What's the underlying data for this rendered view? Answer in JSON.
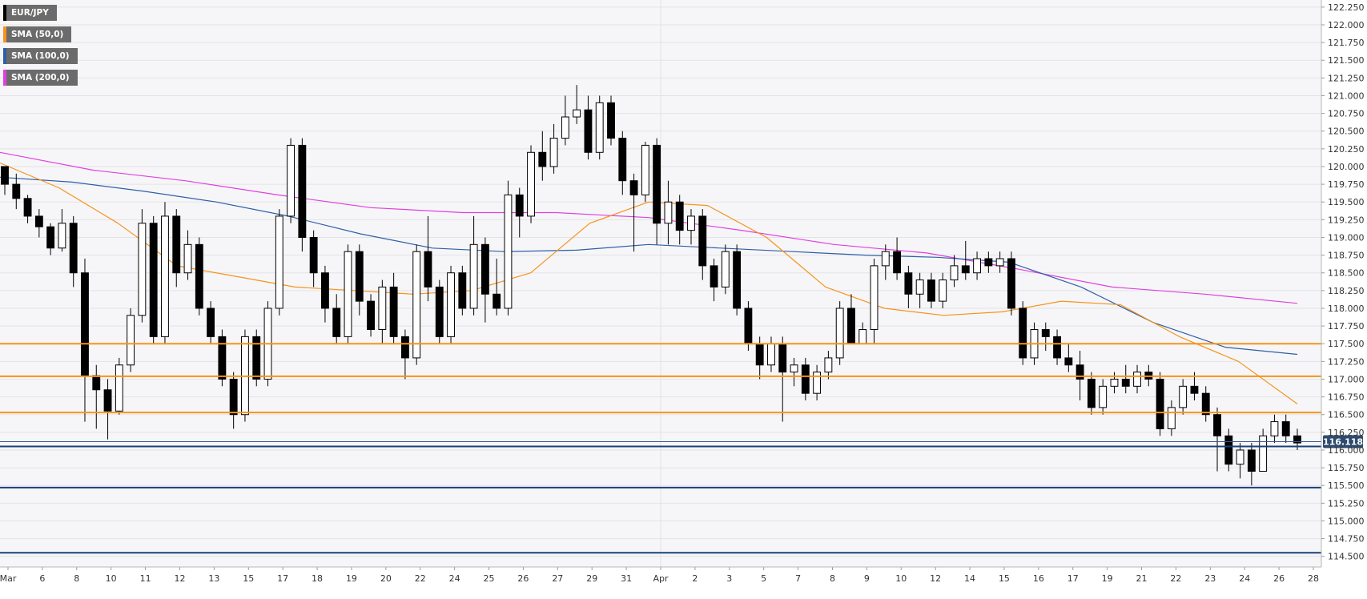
{
  "chart_data": {
    "type": "candlestick",
    "instrument": "EUR/JPY",
    "legend": [
      {
        "label": "EUR/JPY",
        "color": "#000000"
      },
      {
        "label": "SMA (50,0)",
        "color": "#f7931a"
      },
      {
        "label": "SMA (100,0)",
        "color": "#2f5fa7"
      },
      {
        "label": "SMA (200,0)",
        "color": "#e040e0"
      }
    ],
    "ylim": [
      114.35,
      122.35
    ],
    "y_ticks": [
      "122.250",
      "122.000",
      "121.750",
      "121.500",
      "121.250",
      "121.000",
      "120.750",
      "120.500",
      "120.250",
      "120.000",
      "119.750",
      "119.500",
      "119.250",
      "119.000",
      "118.750",
      "118.500",
      "118.250",
      "118.000",
      "117.750",
      "117.500",
      "117.250",
      "117.000",
      "116.750",
      "116.500",
      "116.250",
      "116.000",
      "115.750",
      "115.500",
      "115.250",
      "115.000",
      "114.750",
      "114.500"
    ],
    "x_ticks": [
      "Mar",
      "6",
      "8",
      "10",
      "11",
      "12",
      "13",
      "15",
      "17",
      "18",
      "19",
      "20",
      "22",
      "24",
      "25",
      "26",
      "27",
      "29",
      "31",
      "Apr",
      "2",
      "3",
      "5",
      "7",
      "8",
      "9",
      "10",
      "12",
      "14",
      "15",
      "16",
      "17",
      "19",
      "21",
      "22",
      "23",
      "24",
      "26",
      "28"
    ],
    "last_price": "116.118",
    "resistance_levels": [
      117.5,
      117.04,
      116.53
    ],
    "support_levels": [
      116.05,
      115.47,
      114.55
    ],
    "sma_50": [
      120.05,
      119.7,
      119.2,
      118.6,
      118.45,
      118.3,
      118.25,
      118.2,
      118.25,
      118.5,
      119.2,
      119.5,
      119.45,
      119.0,
      118.3,
      118.0,
      117.9,
      117.95,
      118.1,
      118.05,
      117.6,
      117.25,
      116.65
    ],
    "sma_100": [
      119.85,
      119.78,
      119.65,
      119.5,
      119.3,
      119.05,
      118.85,
      118.8,
      118.82,
      118.9,
      118.85,
      118.8,
      118.75,
      118.72,
      118.65,
      118.3,
      117.8,
      117.45,
      117.35
    ],
    "sma_200": [
      120.2,
      119.95,
      119.8,
      119.6,
      119.42,
      119.35,
      119.35,
      119.28,
      119.1,
      118.9,
      118.78,
      118.55,
      118.3,
      118.2,
      118.07
    ],
    "candles": [
      [
        120.0,
        119.75,
        120.0,
        119.6
      ],
      [
        119.75,
        119.55,
        119.9,
        119.4
      ],
      [
        119.55,
        119.3,
        119.6,
        119.2
      ],
      [
        119.3,
        119.15,
        119.4,
        119.0
      ],
      [
        119.15,
        118.85,
        119.2,
        118.75
      ],
      [
        118.85,
        119.2,
        119.4,
        118.8
      ],
      [
        119.2,
        118.5,
        119.3,
        118.3
      ],
      [
        118.5,
        117.05,
        118.7,
        116.4
      ],
      [
        117.05,
        116.85,
        117.2,
        116.3
      ],
      [
        116.85,
        116.55,
        117.0,
        116.15
      ],
      [
        116.55,
        117.2,
        117.3,
        116.5
      ],
      [
        117.2,
        117.9,
        118.0,
        117.1
      ],
      [
        117.9,
        119.2,
        119.4,
        117.8
      ],
      [
        119.2,
        117.6,
        119.3,
        117.5
      ],
      [
        117.6,
        119.3,
        119.5,
        117.5
      ],
      [
        119.3,
        118.5,
        119.4,
        118.3
      ],
      [
        118.5,
        118.9,
        119.1,
        118.4
      ],
      [
        118.9,
        118.0,
        119.0,
        117.9
      ],
      [
        118.0,
        117.6,
        118.1,
        117.5
      ],
      [
        117.6,
        117.0,
        117.7,
        116.9
      ],
      [
        117.0,
        116.5,
        117.1,
        116.3
      ],
      [
        116.5,
        117.6,
        117.7,
        116.4
      ],
      [
        117.6,
        117.0,
        117.7,
        116.9
      ],
      [
        117.0,
        118.0,
        118.1,
        116.9
      ],
      [
        118.0,
        119.3,
        119.4,
        117.9
      ],
      [
        119.3,
        120.3,
        120.4,
        119.2
      ],
      [
        120.3,
        119.0,
        120.4,
        118.8
      ],
      [
        119.0,
        118.5,
        119.1,
        118.3
      ],
      [
        118.5,
        118.0,
        118.6,
        117.8
      ],
      [
        118.0,
        117.6,
        118.2,
        117.5
      ],
      [
        117.6,
        118.8,
        118.9,
        117.5
      ],
      [
        118.8,
        118.1,
        118.9,
        117.9
      ],
      [
        118.1,
        117.7,
        118.2,
        117.6
      ],
      [
        117.7,
        118.3,
        118.4,
        117.5
      ],
      [
        118.3,
        117.6,
        118.5,
        117.5
      ],
      [
        117.6,
        117.3,
        117.7,
        117.0
      ],
      [
        117.3,
        118.8,
        118.9,
        117.2
      ],
      [
        118.8,
        118.3,
        119.3,
        118.1
      ],
      [
        118.3,
        117.6,
        118.4,
        117.5
      ],
      [
        117.6,
        118.5,
        118.6,
        117.5
      ],
      [
        118.5,
        118.0,
        118.6,
        117.9
      ],
      [
        118.0,
        118.9,
        119.3,
        117.9
      ],
      [
        118.9,
        118.2,
        119.0,
        117.8
      ],
      [
        118.2,
        118.0,
        118.7,
        117.9
      ],
      [
        118.0,
        119.6,
        119.8,
        117.9
      ],
      [
        119.6,
        119.3,
        119.7,
        119.0
      ],
      [
        119.3,
        120.2,
        120.3,
        119.2
      ],
      [
        120.2,
        120.0,
        120.5,
        119.8
      ],
      [
        120.0,
        120.4,
        120.6,
        119.9
      ],
      [
        120.4,
        120.7,
        121.0,
        120.3
      ],
      [
        120.7,
        120.8,
        121.15,
        120.6
      ],
      [
        120.8,
        120.2,
        121.0,
        120.1
      ],
      [
        120.2,
        120.9,
        121.0,
        120.1
      ],
      [
        120.9,
        120.4,
        121.0,
        120.3
      ],
      [
        120.4,
        119.8,
        120.5,
        119.6
      ],
      [
        119.8,
        119.6,
        119.9,
        118.8
      ],
      [
        119.6,
        120.3,
        120.35,
        119.5
      ],
      [
        120.3,
        119.2,
        120.4,
        118.9
      ],
      [
        119.2,
        119.5,
        119.8,
        118.9
      ],
      [
        119.5,
        119.1,
        119.6,
        118.9
      ],
      [
        119.1,
        119.3,
        119.4,
        118.9
      ],
      [
        119.3,
        118.6,
        119.4,
        118.4
      ],
      [
        118.6,
        118.3,
        118.7,
        118.1
      ],
      [
        118.3,
        118.8,
        118.9,
        118.2
      ],
      [
        118.8,
        118.0,
        118.9,
        117.9
      ],
      [
        118.0,
        117.5,
        118.1,
        117.4
      ],
      [
        117.5,
        117.2,
        117.6,
        117.0
      ],
      [
        117.2,
        117.5,
        117.6,
        117.1
      ],
      [
        117.5,
        117.1,
        117.6,
        116.4
      ],
      [
        117.1,
        117.2,
        117.3,
        116.9
      ],
      [
        117.2,
        116.8,
        117.3,
        116.7
      ],
      [
        116.8,
        117.1,
        117.2,
        116.7
      ],
      [
        117.1,
        117.3,
        117.4,
        117.0
      ],
      [
        117.3,
        118.0,
        118.1,
        117.2
      ],
      [
        118.0,
        117.5,
        118.2,
        117.5
      ],
      [
        117.5,
        117.7,
        117.8,
        117.5
      ],
      [
        117.7,
        118.6,
        118.7,
        117.5
      ],
      [
        118.6,
        118.8,
        118.9,
        118.4
      ],
      [
        118.8,
        118.5,
        119.0,
        118.4
      ],
      [
        118.5,
        118.2,
        118.6,
        118.0
      ],
      [
        118.2,
        118.4,
        118.5,
        118.0
      ],
      [
        118.4,
        118.1,
        118.5,
        118.0
      ],
      [
        118.1,
        118.4,
        118.5,
        118.0
      ],
      [
        118.4,
        118.6,
        118.75,
        118.3
      ],
      [
        118.6,
        118.5,
        118.95,
        118.4
      ],
      [
        118.5,
        118.7,
        118.8,
        118.4
      ],
      [
        118.7,
        118.6,
        118.8,
        118.5
      ],
      [
        118.6,
        118.7,
        118.8,
        118.5
      ],
      [
        118.7,
        118.0,
        118.8,
        117.9
      ],
      [
        118.0,
        117.3,
        118.1,
        117.2
      ],
      [
        117.3,
        117.7,
        117.8,
        117.2
      ],
      [
        117.7,
        117.6,
        117.8,
        117.4
      ],
      [
        117.6,
        117.3,
        117.7,
        117.2
      ],
      [
        117.3,
        117.2,
        117.5,
        117.1
      ],
      [
        117.2,
        117.0,
        117.4,
        116.7
      ],
      [
        117.0,
        116.6,
        117.1,
        116.5
      ],
      [
        116.6,
        116.9,
        117.0,
        116.5
      ],
      [
        116.9,
        117.0,
        117.1,
        116.8
      ],
      [
        117.0,
        116.9,
        117.2,
        116.8
      ],
      [
        116.9,
        117.1,
        117.2,
        116.8
      ],
      [
        117.1,
        117.0,
        117.2,
        116.9
      ],
      [
        117.0,
        116.3,
        117.1,
        116.2
      ],
      [
        116.3,
        116.6,
        116.7,
        116.2
      ],
      [
        116.6,
        116.9,
        117.0,
        116.5
      ],
      [
        116.9,
        116.8,
        117.1,
        116.7
      ],
      [
        116.8,
        116.5,
        116.9,
        116.4
      ],
      [
        116.5,
        116.2,
        116.6,
        115.7
      ],
      [
        116.2,
        115.8,
        116.3,
        115.7
      ],
      [
        115.8,
        116.0,
        116.1,
        115.6
      ],
      [
        116.0,
        115.7,
        116.1,
        115.5
      ],
      [
        115.7,
        116.2,
        116.3,
        115.7
      ],
      [
        116.2,
        116.4,
        116.5,
        116.1
      ],
      [
        116.4,
        116.2,
        116.5,
        116.1
      ],
      [
        116.2,
        116.1,
        116.3,
        116.0
      ]
    ]
  }
}
